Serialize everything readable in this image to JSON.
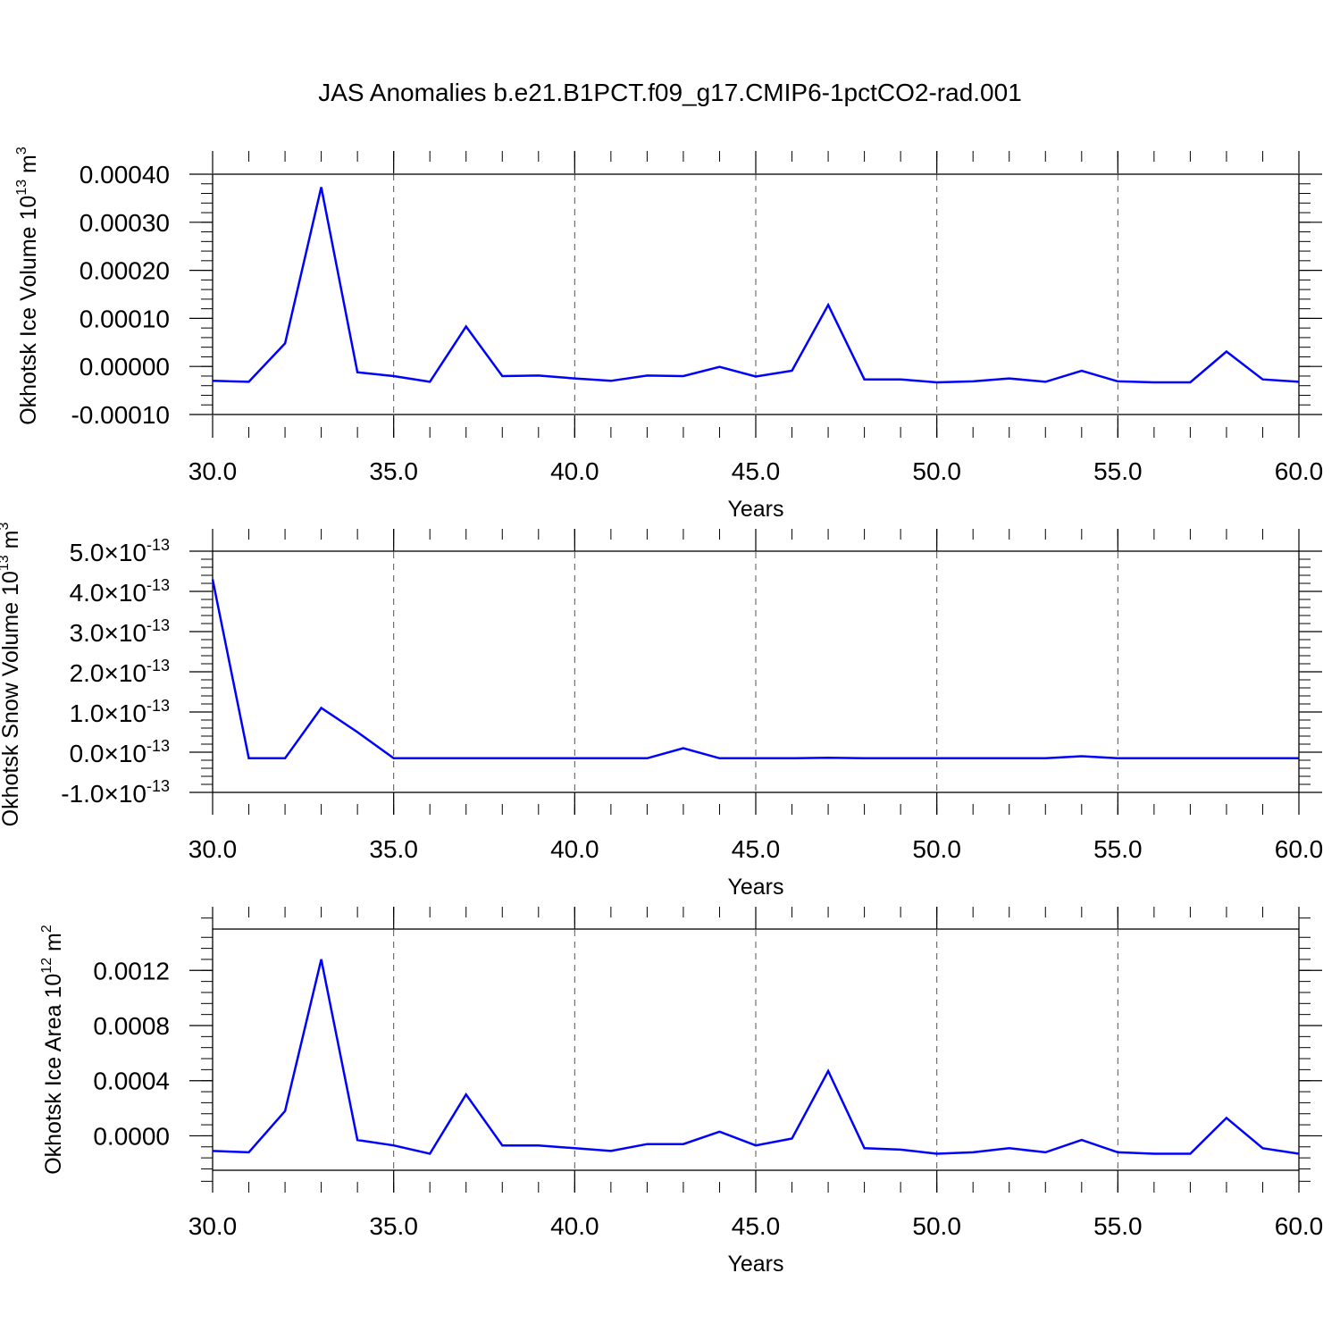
{
  "title": "JAS Anomalies b.e21.B1PCT.f09_g17.CMIP6-1pctCO2-rad.001",
  "chart_data": [
    {
      "type": "line",
      "xlabel": "Years",
      "ylabel": "Okhotsk Ice Volume 10^13 m^3",
      "ylabel_base": "Okhotsk Ice Volume 10",
      "ylabel_sup1": "13",
      "ylabel_mid": " m",
      "ylabel_sup2": "3",
      "xlim": [
        30,
        60
      ],
      "ylim": [
        -0.0001,
        0.0004
      ],
      "xticks": [
        30,
        35,
        40,
        45,
        50,
        55,
        60
      ],
      "xtick_labels": [
        "30.0",
        "35.0",
        "40.0",
        "45.0",
        "50.0",
        "55.0",
        "60.0"
      ],
      "yticks": [
        -0.0001,
        0,
        0.0001,
        0.0002,
        0.0003,
        0.0004
      ],
      "ytick_labels": [
        "-0.00010",
        "0.00000",
        "0.00010",
        "0.00020",
        "0.00030",
        "0.00040"
      ],
      "grid": "dashed vertical lines at major x ticks",
      "line_color": "#0000ff",
      "series": [
        {
          "x": [
            30,
            31,
            32,
            33,
            34,
            35,
            36,
            37,
            38,
            39,
            40,
            41,
            42,
            43,
            44,
            45,
            46,
            47,
            48,
            49,
            50,
            51,
            52,
            53,
            54,
            55,
            56,
            57,
            58,
            59,
            60
          ],
          "values": [
            -3e-05,
            -3.2e-05,
            4.8e-05,
            0.000373,
            -1.2e-05,
            -2e-05,
            -3.2e-05,
            8.3e-05,
            -2e-05,
            -1.9e-05,
            -2.5e-05,
            -3e-05,
            -1.9e-05,
            -2e-05,
            -1e-06,
            -2.1e-05,
            -9e-06,
            0.000128,
            -2.7e-05,
            -2.7e-05,
            -3.3e-05,
            -3.1e-05,
            -2.5e-05,
            -3.2e-05,
            -9e-06,
            -3.1e-05,
            -3.3e-05,
            -3.3e-05,
            3.1e-05,
            -2.7e-05,
            -3.2e-05
          ]
        }
      ]
    },
    {
      "type": "line",
      "xlabel": "Years",
      "ylabel": "Okhotsk Snow Volume 10^13 m^3",
      "ylabel_base": "Okhotsk Snow Volume 10",
      "ylabel_sup1": "13",
      "ylabel_mid": " m",
      "ylabel_sup2": "3",
      "xlim": [
        30,
        60
      ],
      "ylim": [
        -1e-13,
        5e-13
      ],
      "xticks": [
        30,
        35,
        40,
        45,
        50,
        55,
        60
      ],
      "xtick_labels": [
        "30.0",
        "35.0",
        "40.0",
        "45.0",
        "50.0",
        "55.0",
        "60.0"
      ],
      "yticks": [
        -1e-13,
        0,
        1e-13,
        2e-13,
        3e-13,
        4e-13,
        5e-13
      ],
      "ytick_mantissas": [
        "-1.0",
        "0.0",
        "1.0",
        "2.0",
        "3.0",
        "4.0",
        "5.0"
      ],
      "ytick_times": "×10",
      "ytick_exponent": "-13",
      "grid": "dashed vertical lines at major x ticks",
      "line_color": "#0000ff",
      "series": [
        {
          "x": [
            30,
            31,
            32,
            33,
            34,
            35,
            36,
            37,
            38,
            39,
            40,
            41,
            42,
            43,
            44,
            45,
            46,
            47,
            48,
            49,
            50,
            51,
            52,
            53,
            54,
            55,
            56,
            57,
            58,
            59,
            60
          ],
          "values": [
            4.3e-13,
            -1.5e-14,
            -1.5e-14,
            1.1e-13,
            5e-14,
            -1.5e-14,
            -1.5e-14,
            -1.5e-14,
            -1.5e-14,
            -1.5e-14,
            -1.5e-14,
            -1.5e-14,
            -1.5e-14,
            1e-14,
            -1.5e-14,
            -1.5e-14,
            -1.5e-14,
            -1.4e-14,
            -1.5e-14,
            -1.5e-14,
            -1.5e-14,
            -1.5e-14,
            -1.5e-14,
            -1.5e-14,
            -1e-14,
            -1.5e-14,
            -1.5e-14,
            -1.5e-14,
            -1.5e-14,
            -1.5e-14,
            -1.5e-14
          ]
        }
      ]
    },
    {
      "type": "line",
      "xlabel": "Years",
      "ylabel": "Okhotsk Ice Area 10^12 m^2",
      "ylabel_base": "Okhotsk Ice Area 10",
      "ylabel_sup1": "12",
      "ylabel_mid": " m",
      "ylabel_sup2": "2",
      "xlim": [
        30,
        60
      ],
      "ylim": [
        -0.00025,
        0.0015
      ],
      "xticks": [
        30,
        35,
        40,
        45,
        50,
        55,
        60
      ],
      "xtick_labels": [
        "30.0",
        "35.0",
        "40.0",
        "45.0",
        "50.0",
        "55.0",
        "60.0"
      ],
      "yticks": [
        0,
        0.0004,
        0.0008,
        0.0012
      ],
      "ytick_labels": [
        "0.0000",
        "0.0004",
        "0.0008",
        "0.0012"
      ],
      "grid": "dashed vertical lines at major x ticks",
      "line_color": "#0000ff",
      "series": [
        {
          "x": [
            30,
            31,
            32,
            33,
            34,
            35,
            36,
            37,
            38,
            39,
            40,
            41,
            42,
            43,
            44,
            45,
            46,
            47,
            48,
            49,
            50,
            51,
            52,
            53,
            54,
            55,
            56,
            57,
            58,
            59,
            60
          ],
          "values": [
            -0.00011,
            -0.00012,
            0.00018,
            0.00128,
            -3e-05,
            -7e-05,
            -0.00013,
            0.0003,
            -7e-05,
            -7e-05,
            -9e-05,
            -0.00011,
            -6e-05,
            -6e-05,
            3e-05,
            -7e-05,
            -2e-05,
            0.00047,
            -9e-05,
            -0.0001,
            -0.00013,
            -0.00012,
            -9e-05,
            -0.00012,
            -3e-05,
            -0.00012,
            -0.00013,
            -0.00013,
            0.00013,
            -9e-05,
            -0.00013
          ]
        }
      ]
    }
  ]
}
